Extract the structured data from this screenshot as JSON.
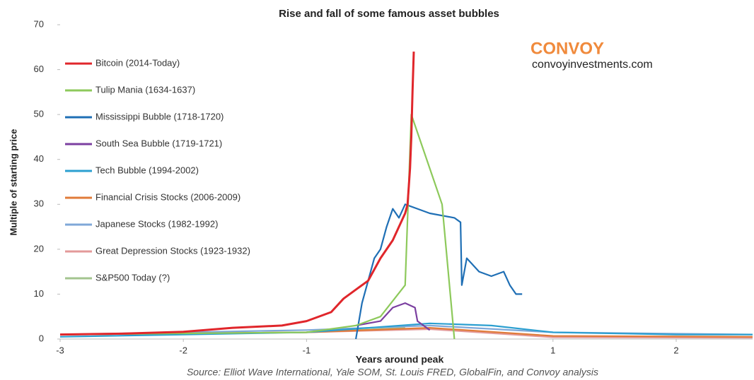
{
  "chart_data": {
    "type": "line",
    "title": "Rise and fall of some famous asset bubbles",
    "x_label": "Years around peak",
    "y_label": "Multiple of starting price",
    "brand": "CONVOY",
    "site": "convoyinvestments.com",
    "source": "Source: Elliot Wave International, Yale SOM, St. Louis FRED, GlobalFin, and Convoy analysis",
    "xlim": [
      -3,
      2.62
    ],
    "ylim": [
      0,
      70
    ],
    "xticks": [
      -3,
      -2,
      -1,
      1,
      2
    ],
    "yticks": [
      0,
      10,
      20,
      30,
      40,
      50,
      60,
      70
    ],
    "series": [
      {
        "name": "Bitcoin (2014-Today)",
        "color": "#e0262b",
        "x": [
          -3,
          -2.5,
          -2,
          -1.6,
          -1.2,
          -1,
          -0.8,
          -0.7,
          -0.6,
          -0.5,
          -0.4,
          -0.3,
          -0.25,
          -0.2,
          -0.18,
          -0.16,
          -0.15,
          -0.14,
          -0.13
        ],
        "values": [
          1,
          1.2,
          1.6,
          2.5,
          3,
          4,
          6,
          9,
          11,
          13,
          18,
          22,
          25,
          28,
          30,
          38,
          45,
          55,
          64
        ]
      },
      {
        "name": "Tulip Mania (1634-1637)",
        "color": "#8dc95b",
        "x": [
          -3,
          -1,
          -0.6,
          -0.4,
          -0.2,
          -0.15,
          0.1,
          0.2
        ],
        "values": [
          1,
          1.5,
          3,
          5,
          12,
          50,
          30,
          0
        ]
      },
      {
        "name": "Mississippi Bubble (1718-1720)",
        "color": "#1f6fb5",
        "x": [
          -0.6,
          -0.55,
          -0.5,
          -0.45,
          -0.4,
          -0.35,
          -0.3,
          -0.25,
          -0.2,
          -0.1,
          0,
          0.2,
          0.25,
          0.26,
          0.3,
          0.4,
          0.5,
          0.6,
          0.65,
          0.7,
          0.75
        ],
        "values": [
          0,
          8,
          13,
          18,
          20,
          25,
          29,
          27,
          30,
          29,
          28,
          27,
          26,
          12,
          18,
          15,
          14,
          15,
          12,
          10,
          10
        ]
      },
      {
        "name": "South Sea Bubble (1719-1721)",
        "color": "#7b3fa0",
        "x": [
          -0.6,
          -0.4,
          -0.3,
          -0.2,
          -0.12,
          -0.1,
          0
        ],
        "values": [
          3,
          4,
          7,
          8,
          7,
          4,
          2
        ]
      },
      {
        "name": "Tech Bubble (1994-2002)",
        "color": "#2b9fd0",
        "x": [
          -3,
          -1,
          0,
          0.5,
          1,
          2,
          2.62
        ],
        "values": [
          0.5,
          1.5,
          3.5,
          3,
          1.5,
          1,
          1
        ]
      },
      {
        "name": "Financial Crisis Stocks (2006-2009)",
        "color": "#e07b39",
        "x": [
          -3,
          -1,
          0,
          1,
          2.62
        ],
        "values": [
          1,
          1.5,
          2.5,
          0.7,
          0.5
        ]
      },
      {
        "name": "Japanese Stocks (1982-1992)",
        "color": "#7fa8d8",
        "x": [
          -3,
          -1,
          0,
          1,
          2.62
        ],
        "values": [
          1,
          2,
          3,
          1.5,
          1
        ]
      },
      {
        "name": "Great Depression Stocks (1923-1932)",
        "color": "#e39a9a",
        "x": [
          -3,
          -1,
          0,
          1,
          2.62
        ],
        "values": [
          1,
          1.5,
          2.2,
          0.4,
          0.3
        ]
      },
      {
        "name": "S&P500 Today (?)",
        "color": "#a3c48f",
        "x": [
          -3,
          -1,
          -0.2
        ],
        "values": [
          1,
          1.5,
          2.5
        ]
      }
    ]
  }
}
